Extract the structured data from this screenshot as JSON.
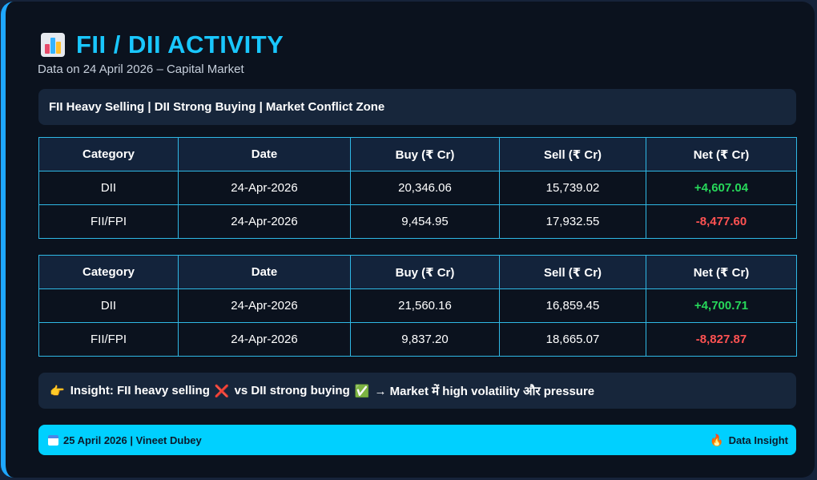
{
  "header": {
    "title": "FII / DII ACTIVITY",
    "subtitle": "Data on 24 April 2026 – Capital Market"
  },
  "banner": "FII Heavy Selling | DII Strong Buying | Market Conflict Zone",
  "table_headers": [
    "Category",
    "Date",
    "Buy (₹ Cr)",
    "Sell (₹ Cr)",
    "Net (₹ Cr)"
  ],
  "tables": [
    {
      "rows": [
        {
          "category": "DII",
          "date": "24-Apr-2026",
          "buy": "20,346.06",
          "sell": "15,739.02",
          "net": "+4,607.04"
        },
        {
          "category": "FII/FPI",
          "date": "24-Apr-2026",
          "buy": "9,454.95",
          "sell": "17,932.55",
          "net": "-8,477.60"
        }
      ]
    },
    {
      "rows": [
        {
          "category": "DII",
          "date": "24-Apr-2026",
          "buy": "21,560.16",
          "sell": "16,859.45",
          "net": "+4,700.71"
        },
        {
          "category": "FII/FPI",
          "date": "24-Apr-2026",
          "buy": "9,837.20",
          "sell": "18,665.07",
          "net": "-8,827.87"
        }
      ]
    }
  ],
  "insight": {
    "prefix": "Insight: FII heavy selling",
    "middle": "vs DII strong buying",
    "suffix": "→ Market में high volatility और pressure"
  },
  "footer": {
    "left": "25 April 2026 | Vineet Dubey",
    "right": "Data Insight"
  },
  "colors": {
    "accent": "#19c7ff",
    "positive": "#27d85a",
    "negative": "#ff5252",
    "footer_bg": "#00d0ff"
  },
  "icons": [
    "bar-chart-icon",
    "pointing-hand-icon",
    "cross-mark-icon",
    "check-mark-icon",
    "calendar-icon",
    "flame-icon"
  ]
}
